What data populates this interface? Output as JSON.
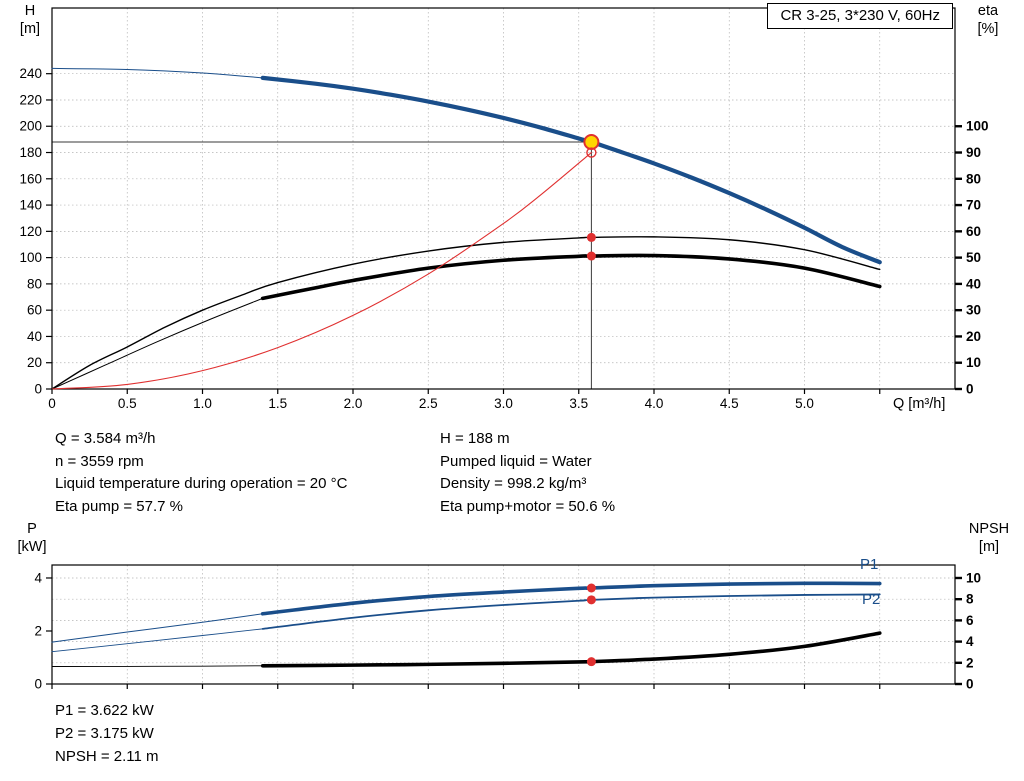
{
  "title_box": "CR 3-25, 3*230 V, 60Hz",
  "colors": {
    "blue": "#1a4e8a",
    "black": "#000000",
    "red": "#e03030",
    "grid": "#b4b4b4",
    "crosshair": "#3a3a3a",
    "marker_yellow": "#ffd500"
  },
  "axis_labels": {
    "top_left_1": "H",
    "top_left_2": "[m]",
    "top_right_1": "eta",
    "top_right_2": "[%]",
    "x_label": "Q [m³/h]",
    "bottom_left_1": "P",
    "bottom_left_2": "[kW]",
    "bottom_right_1": "NPSH",
    "bottom_right_2": "[m]"
  },
  "curve_labels": {
    "p1": "P1",
    "p2": "P2"
  },
  "info_block": {
    "left": [
      "Q = 3.584 m³/h",
      "n = 3559 rpm",
      "Liquid temperature during operation = 20 °C",
      "Eta pump = 57.7 %"
    ],
    "right": [
      "H = 188 m",
      "Pumped liquid = Water",
      "Density = 998.2 kg/m³",
      "Eta pump+motor = 50.6 %"
    ]
  },
  "result_block": [
    "P1 = 3.622 kW",
    "P2 = 3.175 kW",
    "NPSH = 2.11 m"
  ],
  "chart_data": [
    {
      "type": "line",
      "title": "CR 3-25, 3*230 V, 60Hz",
      "xlabel": "Q [m³/h]",
      "ylabel_left": "H [m]",
      "ylabel_right": "eta [%]",
      "xlim": [
        0,
        6
      ],
      "ylim_left": [
        0,
        290
      ],
      "ylim_right": [
        0,
        100
      ],
      "right_axis_scale": 2,
      "x_ticks": [
        0,
        0.5,
        1,
        1.5,
        2,
        2.5,
        3,
        3.5,
        4,
        4.5,
        5,
        5.5
      ],
      "x_tick_labels": [
        "0",
        "0.5",
        "1.0",
        "1.5",
        "2.0",
        "2.5",
        "3.0",
        "3.5",
        "4.0",
        "4.5",
        "5.0"
      ],
      "y_ticks_left": [
        0,
        20,
        40,
        60,
        80,
        100,
        120,
        140,
        160,
        180,
        200,
        220,
        240
      ],
      "y_ticks_right": [
        0,
        10,
        20,
        30,
        40,
        50,
        60,
        70,
        80,
        90,
        100
      ],
      "crosshair": {
        "x": 3.584,
        "y": 188
      },
      "series": [
        {
          "name": "qh-leadin",
          "axis": "left",
          "color": "blue",
          "width": 1,
          "x": [
            0,
            0.5,
            1.0,
            1.4
          ],
          "y": [
            244,
            243.2,
            240.5,
            236.8
          ]
        },
        {
          "name": "qh",
          "axis": "left",
          "color": "blue",
          "width": 4.2,
          "x": [
            1.4,
            1.75,
            2.0,
            2.25,
            2.5,
            2.75,
            3.0,
            3.25,
            3.5,
            3.584,
            3.75,
            4.0,
            4.25,
            4.5,
            4.75,
            5.0,
            5.25,
            5.5
          ],
          "y": [
            236.8,
            232.4,
            228.6,
            224.0,
            218.8,
            212.9,
            206.3,
            198.9,
            190.7,
            188.0,
            181.6,
            171.7,
            160.9,
            149.1,
            136.4,
            122.7,
            108.1,
            96.5
          ]
        },
        {
          "name": "eta-pump",
          "axis": "right",
          "color": "black",
          "width": 1.4,
          "x": [
            0,
            0.25,
            0.5,
            0.75,
            1.0,
            1.25,
            1.5,
            2.0,
            2.5,
            3.0,
            3.5,
            3.584,
            4.0,
            4.5,
            5.0,
            5.5
          ],
          "y": [
            0,
            9,
            16,
            23.5,
            30,
            35.5,
            40.5,
            47.5,
            52.5,
            55.8,
            57.5,
            57.7,
            57.9,
            56.8,
            53.0,
            45.5
          ]
        },
        {
          "name": "eta-pump-motor-leadin",
          "axis": "right",
          "color": "black",
          "width": 1,
          "x": [
            0,
            0.35,
            0.7,
            1.05,
            1.4
          ],
          "y": [
            0,
            9,
            18,
            26.5,
            34.5
          ]
        },
        {
          "name": "eta-pump-motor",
          "axis": "right",
          "color": "black",
          "width": 3.6,
          "x": [
            1.4,
            1.75,
            2.0,
            2.5,
            3.0,
            3.5,
            3.584,
            4.0,
            4.5,
            5.0,
            5.5
          ],
          "y": [
            34.5,
            38.5,
            41.3,
            46.0,
            49.0,
            50.5,
            50.6,
            50.8,
            49.5,
            46.0,
            39.0
          ]
        },
        {
          "name": "system-curve",
          "axis": "left",
          "color": "red",
          "width": 1.1,
          "x": [
            0,
            0.5,
            1.0,
            1.5,
            2.0,
            2.5,
            3.0,
            3.25,
            3.584
          ],
          "y": [
            0,
            3.5,
            14,
            31.5,
            56,
            87.5,
            126,
            148,
            180
          ]
        }
      ],
      "markers": [
        {
          "x": 3.584,
          "y": 188,
          "axis": "left",
          "style": "op",
          "label": "operating point"
        },
        {
          "x": 3.584,
          "y": 180,
          "axis": "left",
          "style": "open",
          "label": "duty point"
        },
        {
          "x": 3.584,
          "y": 57.7,
          "axis": "right",
          "style": "dot",
          "label": "eta pump point"
        },
        {
          "x": 3.584,
          "y": 50.6,
          "axis": "right",
          "style": "dot",
          "label": "eta pump+motor point"
        }
      ]
    },
    {
      "type": "line",
      "title": "Power and NPSH",
      "xlabel": "Q [m³/h]",
      "ylabel_left": "P [kW]",
      "ylabel_right": "NPSH [m]",
      "xlim": [
        0,
        6
      ],
      "ylim_left": [
        0,
        4.49
      ],
      "ylim_right": [
        0,
        11.2
      ],
      "right_axis_scale": 0.4,
      "x_ticks": [
        0,
        0.5,
        1,
        1.5,
        2,
        2.5,
        3,
        3.5,
        4,
        4.5,
        5,
        5.5
      ],
      "y_ticks_left": [
        0,
        2,
        4
      ],
      "y_ticks_right": [
        0,
        2,
        4,
        6,
        8,
        10
      ],
      "series": [
        {
          "name": "p1-leadin",
          "axis": "left",
          "color": "blue",
          "width": 1,
          "x": [
            0,
            0.5,
            1.0,
            1.4
          ],
          "y": [
            1.58,
            1.96,
            2.33,
            2.65
          ]
        },
        {
          "name": "p1",
          "axis": "left",
          "color": "blue",
          "width": 3.6,
          "x": [
            1.4,
            2.0,
            2.5,
            3.0,
            3.5,
            3.584,
            4.0,
            4.5,
            5.0,
            5.5
          ],
          "y": [
            2.65,
            3.05,
            3.3,
            3.47,
            3.61,
            3.622,
            3.71,
            3.77,
            3.8,
            3.79
          ]
        },
        {
          "name": "p2-leadin",
          "axis": "left",
          "color": "blue",
          "width": 0.9,
          "x": [
            0,
            0.5,
            1.0,
            1.4
          ],
          "y": [
            1.22,
            1.52,
            1.83,
            2.08
          ]
        },
        {
          "name": "p2",
          "axis": "left",
          "color": "blue",
          "width": 1.8,
          "x": [
            1.4,
            2.0,
            2.5,
            3.0,
            3.5,
            3.584,
            4.0,
            4.5,
            5.0,
            5.5
          ],
          "y": [
            2.08,
            2.5,
            2.78,
            2.98,
            3.14,
            3.175,
            3.26,
            3.32,
            3.36,
            3.38
          ]
        },
        {
          "name": "npsh-leadin",
          "axis": "right",
          "color": "black",
          "width": 0.9,
          "x": [
            0,
            0.5,
            1.0,
            1.4
          ],
          "y": [
            1.65,
            1.66,
            1.68,
            1.72
          ]
        },
        {
          "name": "npsh",
          "axis": "right",
          "color": "black",
          "width": 3.6,
          "x": [
            1.4,
            2.0,
            2.5,
            3.0,
            3.5,
            3.584,
            4.0,
            4.5,
            5.0,
            5.5
          ],
          "y": [
            1.72,
            1.78,
            1.85,
            1.95,
            2.08,
            2.11,
            2.35,
            2.8,
            3.55,
            4.8
          ]
        }
      ],
      "markers": [
        {
          "x": 3.584,
          "y": 3.622,
          "axis": "left",
          "style": "dot",
          "label": "P1 point"
        },
        {
          "x": 3.584,
          "y": 3.175,
          "axis": "left",
          "style": "dot",
          "label": "P2 point"
        },
        {
          "x": 3.584,
          "y": 2.11,
          "axis": "right",
          "style": "dot",
          "label": "NPSH point"
        }
      ]
    }
  ]
}
